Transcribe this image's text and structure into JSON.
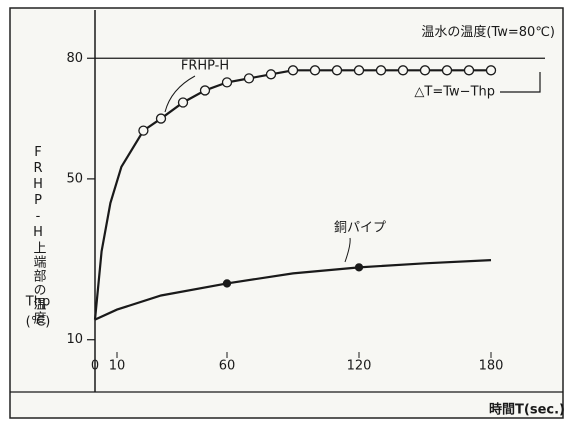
{
  "chart_data": {
    "type": "line",
    "xlabel": "時間T(sec.)",
    "ylabel": "FRHP-H上端部の温度",
    "ylabel_symbol": "Thp",
    "ylabel_unit": "(℃)",
    "xlim": [
      0,
      200
    ],
    "ylim": [
      -3,
      92
    ],
    "xticks": [
      0,
      10,
      60,
      120,
      180
    ],
    "yticks": [
      10,
      50,
      80
    ],
    "reference_lines": [
      {
        "value": 80,
        "label": "温水の温度(Tw=80℃)"
      }
    ],
    "annotations": [
      "△T=Tw−Thp"
    ],
    "series": [
      {
        "name": "FRHP-H",
        "color": "#1a1a1a",
        "marker": "open-circle",
        "x": [
          0,
          3,
          7,
          12,
          22,
          30,
          40,
          50,
          60,
          70,
          80,
          90,
          100,
          110,
          120,
          130,
          140,
          150,
          160,
          170,
          180
        ],
        "values": [
          15,
          32,
          44,
          53,
          62,
          65,
          69,
          72,
          74,
          75,
          76,
          77,
          77,
          77,
          77,
          77,
          77,
          77,
          77,
          77,
          77
        ],
        "markers": [
          false,
          false,
          false,
          false,
          true,
          true,
          true,
          true,
          true,
          true,
          true,
          true,
          true,
          true,
          true,
          true,
          true,
          true,
          true,
          true,
          true
        ]
      },
      {
        "name": "銅パイプ",
        "color": "#1a1a1a",
        "marker": "filled-circle",
        "x": [
          0,
          10,
          30,
          60,
          90,
          120,
          150,
          180
        ],
        "values": [
          15,
          17.5,
          21,
          24,
          26.5,
          28,
          29,
          29.8
        ],
        "markers": [
          false,
          false,
          false,
          true,
          false,
          true,
          false,
          false
        ]
      }
    ]
  }
}
